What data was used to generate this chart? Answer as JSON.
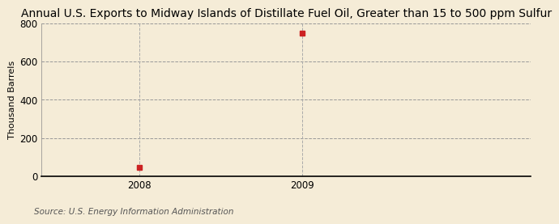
{
  "title": "Annual U.S. Exports to Midway Islands of Distillate Fuel Oil, Greater than 15 to 500 ppm Sulfur",
  "ylabel": "Thousand Barrels",
  "source": "Source: U.S. Energy Information Administration",
  "x_values": [
    2008,
    2009
  ],
  "y_values": [
    47,
    748
  ],
  "xlim": [
    2007.4,
    2010.4
  ],
  "ylim": [
    0,
    800
  ],
  "yticks": [
    0,
    200,
    400,
    600,
    800
  ],
  "xticks": [
    2008,
    2009
  ],
  "marker_color": "#cc2222",
  "marker_size": 4,
  "background_color": "#f5ecd7",
  "grid_color": "#999999",
  "vline_color": "#aaaaaa",
  "title_fontsize": 10,
  "label_fontsize": 8,
  "tick_fontsize": 8.5,
  "source_fontsize": 7.5
}
